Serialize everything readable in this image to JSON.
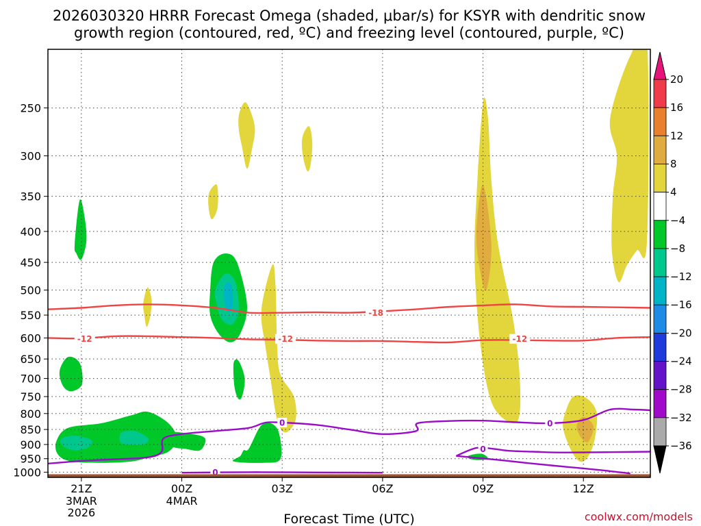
{
  "chart_data": {
    "type": "heatmap",
    "title_line1": "2026030320 HRRR Forecast Omega (shaded, μbar/s) for KSYR with dendritic snow",
    "title_line2": "growth region (contoured, red, ºC) and freezing level (contoured, purple, ºC)",
    "xlabel": "Forecast Time (UTC)",
    "credit": "coolwx.com/models",
    "x_ticks": [
      {
        "hour": 0,
        "label": "21Z",
        "sub": [
          "3MAR",
          "2026"
        ]
      },
      {
        "hour": 3,
        "label": "00Z",
        "sub": [
          "4MAR"
        ]
      },
      {
        "hour": 6,
        "label": "03Z",
        "sub": []
      },
      {
        "hour": 9,
        "label": "06Z",
        "sub": []
      },
      {
        "hour": 12,
        "label": "09Z",
        "sub": []
      },
      {
        "hour": 15,
        "label": "12Z",
        "sub": []
      }
    ],
    "x_range_hours": [
      -1,
      17
    ],
    "y_ticks": [
      250,
      300,
      350,
      400,
      450,
      500,
      550,
      600,
      650,
      700,
      750,
      800,
      850,
      900,
      950,
      1000
    ],
    "y_range_hpa": [
      1020,
      200
    ],
    "colorbar": {
      "labels": [
        "20",
        "16",
        "12",
        "8",
        "4",
        "−4",
        "−8",
        "−12",
        "−16",
        "−20",
        "−24",
        "−28",
        "−32",
        "−36"
      ],
      "colors": [
        "#f03c4a",
        "#e8802e",
        "#e0ac40",
        "#e2d63c",
        "#ffffff",
        "#00c828",
        "#00c88c",
        "#00b4c8",
        "#1e8ce6",
        "#1e3cdc",
        "#6414c8",
        "#a00ac8",
        "#aaaaaa"
      ],
      "top_color": "#e6147a",
      "bottom_color": "#000000"
    },
    "shading": [
      {
        "level": "4",
        "color": "#e2d63c",
        "polygons": [
          [
            [
              4.72,
              255
            ],
            [
              4.92,
              245
            ],
            [
              5.18,
              268
            ],
            [
              5.1,
              292
            ],
            [
              4.95,
              315
            ],
            [
              4.8,
              290
            ],
            [
              4.7,
              270
            ]
          ],
          [
            [
              6.6,
              280
            ],
            [
              6.8,
              268
            ],
            [
              6.9,
              285
            ],
            [
              6.85,
              310
            ],
            [
              6.75,
              318
            ],
            [
              6.62,
              300
            ]
          ],
          [
            [
              3.82,
              345
            ],
            [
              4.05,
              335
            ],
            [
              4.07,
              365
            ],
            [
              3.9,
              382
            ],
            [
              3.8,
              365
            ]
          ],
          [
            [
              1.85,
              525
            ],
            [
              1.98,
              495
            ],
            [
              2.1,
              520
            ],
            [
              2.05,
              555
            ],
            [
              1.95,
              575
            ],
            [
              1.88,
              550
            ]
          ],
          [
            [
              5.38,
              540
            ],
            [
              5.7,
              455
            ],
            [
              5.8,
              490
            ],
            [
              5.85,
              620
            ],
            [
              5.95,
              690
            ],
            [
              6.35,
              750
            ],
            [
              6.4,
              820
            ],
            [
              6.1,
              860
            ],
            [
              5.85,
              820
            ],
            [
              5.65,
              700
            ],
            [
              5.5,
              620
            ]
          ],
          [
            [
              11.8,
              355
            ],
            [
              12.0,
              245
            ],
            [
              12.15,
              260
            ],
            [
              12.25,
              330
            ],
            [
              12.45,
              420
            ],
            [
              12.9,
              560
            ],
            [
              13.1,
              700
            ],
            [
              13.05,
              820
            ],
            [
              12.6,
              815
            ],
            [
              12.2,
              750
            ],
            [
              11.9,
              600
            ],
            [
              11.75,
              450
            ]
          ],
          [
            [
              14.45,
              800
            ],
            [
              14.7,
              750
            ],
            [
              15.1,
              755
            ],
            [
              15.4,
              800
            ],
            [
              15.3,
              900
            ],
            [
              15.0,
              960
            ],
            [
              14.7,
              935
            ],
            [
              14.4,
              850
            ]
          ],
          [
            [
              15.8,
              260
            ],
            [
              16.4,
              205
            ],
            [
              16.9,
              195
            ],
            [
              16.9,
              415
            ],
            [
              16.6,
              430
            ],
            [
              16.3,
              455
            ],
            [
              16.05,
              485
            ],
            [
              15.85,
              430
            ],
            [
              15.88,
              350
            ],
            [
              16.0,
              300
            ]
          ]
        ]
      },
      {
        "level": "8",
        "color": "#e0ac40",
        "polygons": [
          [
            [
              11.8,
              400
            ],
            [
              12.0,
              335
            ],
            [
              12.25,
              420
            ],
            [
              12.1,
              500
            ],
            [
              11.9,
              460
            ]
          ],
          [
            [
              14.8,
              840
            ],
            [
              15.0,
              810
            ],
            [
              15.3,
              840
            ],
            [
              15.15,
              890
            ],
            [
              14.95,
              880
            ]
          ]
        ]
      },
      {
        "level": "-4",
        "color": "#00c828",
        "polygons": [
          [
            [
              -0.2,
              420
            ],
            [
              -0.05,
              355
            ],
            [
              0.1,
              380
            ],
            [
              0.15,
              415
            ],
            [
              0.0,
              445
            ],
            [
              -0.15,
              435
            ]
          ],
          [
            [
              -0.65,
              680
            ],
            [
              -0.4,
              645
            ],
            [
              -0.05,
              660
            ],
            [
              0.02,
              715
            ],
            [
              -0.3,
              735
            ],
            [
              -0.55,
              720
            ]
          ],
          [
            [
              -0.75,
              890
            ],
            [
              -0.4,
              845
            ],
            [
              0.6,
              830
            ],
            [
              1.5,
              805
            ],
            [
              2.0,
              795
            ],
            [
              2.6,
              830
            ],
            [
              2.85,
              880
            ],
            [
              2.6,
              925
            ],
            [
              2.0,
              945
            ],
            [
              1.5,
              960
            ],
            [
              0.6,
              965
            ],
            [
              -0.3,
              960
            ],
            [
              -0.7,
              935
            ]
          ],
          [
            [
              2.55,
              860
            ],
            [
              3.3,
              865
            ],
            [
              3.7,
              880
            ],
            [
              3.55,
              920
            ],
            [
              3.1,
              915
            ],
            [
              2.7,
              905
            ]
          ],
          [
            [
              3.85,
              500
            ],
            [
              3.95,
              450
            ],
            [
              4.3,
              435
            ],
            [
              4.65,
              450
            ],
            [
              4.95,
              530
            ],
            [
              4.75,
              590
            ],
            [
              4.45,
              610
            ],
            [
              4.1,
              590
            ],
            [
              3.85,
              550
            ]
          ],
          [
            [
              4.55,
              660
            ],
            [
              4.7,
              655
            ],
            [
              4.88,
              700
            ],
            [
              4.8,
              750
            ],
            [
              4.68,
              755
            ],
            [
              4.57,
              720
            ]
          ],
          [
            [
              5.35,
              840
            ],
            [
              5.65,
              830
            ],
            [
              5.9,
              860
            ],
            [
              5.95,
              950
            ],
            [
              5.45,
              965
            ],
            [
              4.55,
              960
            ],
            [
              4.75,
              940
            ],
            [
              4.85,
              920
            ],
            [
              5.0,
              915
            ]
          ],
          [
            [
              11.55,
              940
            ],
            [
              11.95,
              932
            ],
            [
              12.15,
              950
            ],
            [
              11.85,
              955
            ],
            [
              11.6,
              950
            ]
          ]
        ]
      },
      {
        "level": "-8",
        "color": "#00c88c",
        "polygons": [
          [
            [
              -0.6,
              880
            ],
            [
              -0.2,
              870
            ],
            [
              0.3,
              885
            ],
            [
              0.2,
              910
            ],
            [
              -0.2,
              920
            ],
            [
              -0.55,
              905
            ]
          ],
          [
            [
              1.2,
              860
            ],
            [
              1.6,
              855
            ],
            [
              2.0,
              880
            ],
            [
              1.85,
              900
            ],
            [
              1.35,
              900
            ],
            [
              1.15,
              890
            ]
          ],
          [
            [
              4.0,
              500
            ],
            [
              4.3,
              470
            ],
            [
              4.6,
              485
            ],
            [
              4.7,
              540
            ],
            [
              4.5,
              570
            ],
            [
              4.2,
              560
            ],
            [
              4.05,
              530
            ]
          ]
        ]
      },
      {
        "level": "-12",
        "color": "#00b4c8",
        "polygons": [
          [
            [
              4.25,
              500
            ],
            [
              4.35,
              485
            ],
            [
              4.5,
              495
            ],
            [
              4.52,
              530
            ],
            [
              4.4,
              545
            ],
            [
              4.3,
              530
            ]
          ]
        ]
      }
    ],
    "contours": [
      {
        "name": "dgz-minus18",
        "color": "#ee4444",
        "label": "-18",
        "label_at": [
          8.8,
          545
        ],
        "points": [
          [
            -1,
            538
          ],
          [
            0,
            535
          ],
          [
            1,
            530
          ],
          [
            2,
            528
          ],
          [
            3,
            530
          ],
          [
            4,
            535
          ],
          [
            5,
            545
          ],
          [
            6,
            545
          ],
          [
            7,
            544
          ],
          [
            8,
            545
          ],
          [
            9,
            542
          ],
          [
            10,
            538
          ],
          [
            11,
            533
          ],
          [
            12,
            530
          ],
          [
            13,
            528
          ],
          [
            14,
            532
          ],
          [
            15,
            533
          ],
          [
            16,
            534
          ],
          [
            17,
            535
          ]
        ]
      },
      {
        "name": "dgz-minus12",
        "color": "#ee4444",
        "label": "-12",
        "label_at": [
          0.1,
          602
        ],
        "labels_extra": [
          [
            6.1,
            602
          ],
          [
            13.1,
            602
          ]
        ],
        "points": [
          [
            -1,
            600
          ],
          [
            0,
            601
          ],
          [
            1,
            596
          ],
          [
            2,
            596
          ],
          [
            3,
            598
          ],
          [
            4,
            600
          ],
          [
            5,
            603
          ],
          [
            6,
            604
          ],
          [
            7,
            606
          ],
          [
            8,
            607
          ],
          [
            9,
            607
          ],
          [
            10,
            609
          ],
          [
            11,
            610
          ],
          [
            12,
            605
          ],
          [
            13,
            605
          ],
          [
            14,
            606
          ],
          [
            15,
            606
          ],
          [
            16,
            600
          ],
          [
            17,
            598
          ]
        ]
      },
      {
        "name": "freezing-level-upper",
        "color": "#9a0cc8",
        "label": "0",
        "label_at": [
          6.0,
          828
        ],
        "labels_extra": [
          [
            14.0,
            830
          ]
        ],
        "points": [
          [
            -1,
            968
          ],
          [
            0,
            958
          ],
          [
            1,
            952
          ],
          [
            2,
            945
          ],
          [
            2.4,
            925
          ],
          [
            2.45,
            880
          ],
          [
            3,
            865
          ],
          [
            4,
            855
          ],
          [
            5,
            845
          ],
          [
            5.5,
            828
          ],
          [
            6,
            828
          ],
          [
            7,
            835
          ],
          [
            8,
            850
          ],
          [
            9,
            865
          ],
          [
            10,
            855
          ],
          [
            10.05,
            830
          ],
          [
            11,
            823
          ],
          [
            12,
            822
          ],
          [
            13,
            827
          ],
          [
            14,
            830
          ],
          [
            15,
            820
          ],
          [
            15.8,
            788
          ],
          [
            16.5,
            788
          ],
          [
            17,
            790
          ]
        ]
      },
      {
        "name": "freezing-level-lower",
        "color": "#9a0cc8",
        "label": "0",
        "label_at": [
          12.0,
          915
        ],
        "points": [
          [
            11.2,
            940
          ],
          [
            11.8,
            912
          ],
          [
            12.3,
            915
          ],
          [
            12.8,
            922
          ],
          [
            13.5,
            925
          ],
          [
            14.5,
            928
          ],
          [
            17,
            925
          ]
        ]
      },
      {
        "name": "freezing-level-lower-tail",
        "color": "#9a0cc8",
        "label": "",
        "points": [
          [
            11.2,
            940
          ],
          [
            12.5,
            955
          ],
          [
            13.5,
            968
          ],
          [
            14.5,
            980
          ],
          [
            15.5,
            992
          ],
          [
            16.4,
            1005
          ]
        ]
      },
      {
        "name": "freezing-level-surface",
        "color": "#9a0cc8",
        "label": "0",
        "label_at": [
          4.0,
          1000
        ],
        "points": [
          [
            3.0,
            1002
          ],
          [
            5,
            1000
          ],
          [
            7,
            1001
          ],
          [
            9,
            1002
          ]
        ]
      }
    ],
    "ground_pressure_hpa": 1008
  }
}
